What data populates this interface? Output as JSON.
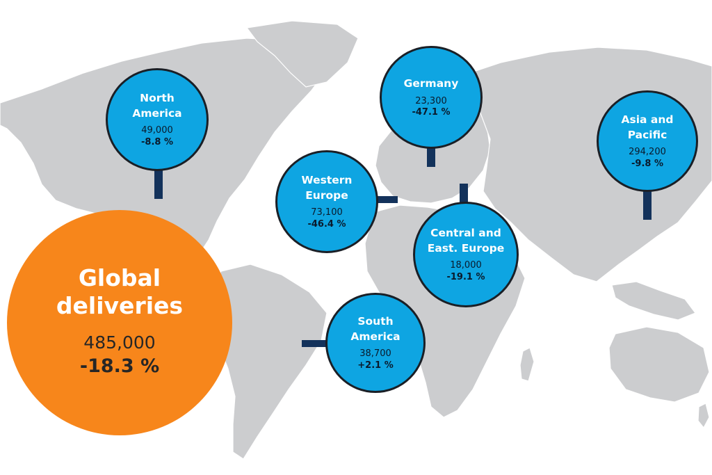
{
  "colors": {
    "land": "#cccdcf",
    "region_bubble": "#0ea5e2",
    "global_bubble": "#f7861b",
    "connector": "#13325b"
  },
  "global": {
    "title": "Global\ndeliveries",
    "value": "485,000",
    "change": "-18.3 %"
  },
  "regions": [
    {
      "id": "north-america",
      "name": "North\nAmerica",
      "value": "49,000",
      "change": "-8.8 %"
    },
    {
      "id": "germany",
      "name": "Germany",
      "value": "23,300",
      "change": "-47.1 %"
    },
    {
      "id": "asia-pacific",
      "name": "Asia and\nPacific",
      "value": "294,200",
      "change": "-9.8 %"
    },
    {
      "id": "western-europe",
      "name": "Western\nEurope",
      "value": "73,100",
      "change": "-46.4 %"
    },
    {
      "id": "central-east-europe",
      "name": "Central and\nEast. Europe",
      "value": "18,000",
      "change": "-19.1 %"
    },
    {
      "id": "south-america",
      "name": "South\nAmerica",
      "value": "38,700",
      "change": "+2.1 %"
    }
  ]
}
